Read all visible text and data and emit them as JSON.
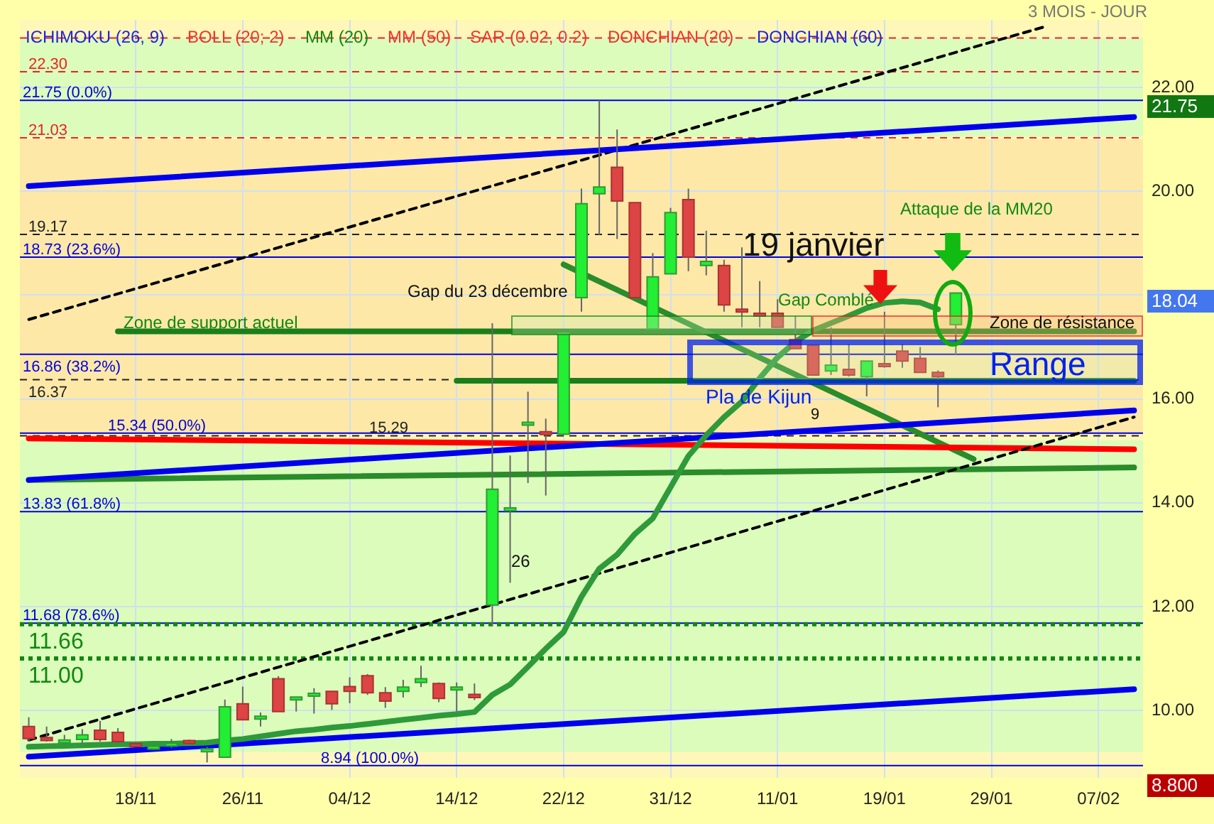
{
  "chart_data": {
    "type": "candlestick",
    "categories": [
      null,
      null,
      null,
      null,
      null,
      null,
      "18/11",
      null,
      null,
      null,
      null,
      null,
      "26/11",
      null,
      null,
      null,
      null,
      null,
      "04/12",
      null,
      null,
      null,
      null,
      null,
      "14/12",
      null,
      null,
      null,
      null,
      null,
      "22/12",
      null,
      null,
      null,
      null,
      null,
      "31/12",
      null,
      null,
      null,
      null,
      null,
      "11/01",
      null,
      null,
      null,
      null,
      null,
      "19/01",
      null,
      null,
      null,
      null,
      null,
      "29/01",
      null,
      null,
      null,
      null,
      null,
      "07/02",
      null,
      null
    ],
    "ohlc": [
      [
        9.69,
        9.87,
        9.4,
        9.46
      ],
      [
        9.48,
        9.69,
        9.4,
        9.42
      ],
      [
        9.42,
        9.53,
        9.35,
        9.43
      ],
      [
        9.44,
        9.64,
        9.37,
        9.53
      ],
      [
        9.62,
        9.8,
        9.4,
        9.44
      ],
      [
        9.58,
        9.66,
        9.37,
        9.4
      ],
      [
        9.36,
        9.4,
        9.33,
        9.35
      ],
      [
        9.26,
        9.33,
        9.24,
        9.31
      ],
      [
        9.36,
        9.45,
        9.28,
        9.37
      ],
      [
        9.42,
        9.44,
        9.37,
        9.37
      ],
      [
        9.25,
        9.3,
        9.0,
        9.26
      ],
      [
        9.1,
        10.21,
        9.1,
        10.07
      ],
      [
        10.13,
        10.46,
        9.82,
        9.82
      ],
      [
        9.87,
        9.96,
        9.69,
        9.89
      ],
      [
        10.61,
        10.66,
        9.98,
        9.98
      ],
      [
        10.24,
        10.26,
        9.98,
        10.26
      ],
      [
        10.32,
        10.43,
        9.94,
        10.33
      ],
      [
        10.37,
        10.37,
        10.01,
        10.13
      ],
      [
        10.46,
        10.64,
        10.14,
        10.37
      ],
      [
        10.67,
        10.7,
        10.3,
        10.34
      ],
      [
        10.34,
        10.45,
        10.05,
        10.18
      ],
      [
        10.37,
        10.59,
        10.25,
        10.45
      ],
      [
        10.54,
        10.86,
        10.45,
        10.61
      ],
      [
        10.52,
        10.54,
        10.16,
        10.23
      ],
      [
        10.43,
        10.54,
        9.98,
        10.45
      ],
      [
        10.31,
        10.52,
        10.2,
        10.25
      ],
      [
        12.03,
        17.46,
        11.62,
        14.26
      ],
      [
        13.88,
        14.91,
        12.46,
        13.9
      ],
      [
        15.5,
        16.14,
        14.38,
        15.55
      ],
      [
        15.37,
        15.62,
        14.14,
        15.33
      ],
      [
        15.32,
        17.3,
        15.3,
        17.27
      ],
      [
        17.95,
        20.05,
        17.68,
        19.76
      ],
      [
        19.95,
        21.75,
        19.16,
        20.08
      ],
      [
        20.46,
        21.19,
        19.08,
        19.81
      ],
      [
        19.78,
        19.78,
        17.95,
        17.95
      ],
      [
        17.35,
        18.81,
        17.35,
        18.35
      ],
      [
        18.41,
        19.68,
        18.41,
        19.59
      ],
      [
        19.84,
        20.05,
        18.46,
        18.73
      ],
      [
        18.57,
        19.24,
        18.38,
        18.65
      ],
      [
        18.57,
        18.68,
        17.68,
        17.81
      ],
      [
        17.73,
        18.92,
        17.38,
        17.68
      ],
      [
        17.65,
        18.27,
        17.38,
        17.6
      ],
      [
        17.65,
        17.92,
        17.38,
        17.38
      ],
      [
        17.14,
        17.59,
        16.97,
        16.97
      ],
      [
        17.03,
        17.03,
        16.46,
        16.46
      ],
      [
        16.54,
        17.38,
        16.46,
        16.65
      ],
      [
        16.57,
        17.05,
        16.43,
        16.46
      ],
      [
        16.43,
        16.73,
        16.05,
        16.73
      ],
      [
        16.68,
        17.68,
        16.6,
        16.65
      ],
      [
        16.92,
        17.05,
        16.6,
        16.73
      ],
      [
        16.78,
        17.0,
        16.51,
        16.51
      ],
      [
        16.51,
        16.55,
        15.84,
        16.43
      ],
      [
        17.43,
        18.04,
        16.84,
        18.04
      ],
      null,
      null,
      null,
      null,
      null,
      null,
      null,
      null,
      null,
      null
    ],
    "series": [
      {
        "type": "line",
        "color": "#2e9a3a",
        "values": [
          9.3,
          9.31,
          9.32,
          9.33,
          9.34,
          9.35,
          9.35,
          9.36,
          9.36,
          9.37,
          9.38,
          9.42,
          9.45,
          9.5,
          9.55,
          9.6,
          9.63,
          9.67,
          9.7,
          9.74,
          9.78,
          9.82,
          9.86,
          9.9,
          9.93,
          9.97,
          10.3,
          10.5,
          10.84,
          11.19,
          11.51,
          12.19,
          12.73,
          13.0,
          13.4,
          13.7,
          14.3,
          14.9,
          15.3,
          15.65,
          15.95,
          16.4,
          16.8,
          17.1,
          17.32,
          17.46,
          17.6,
          17.75,
          17.85,
          17.88,
          17.86,
          17.73,
          null,
          null,
          null,
          null,
          null,
          null,
          null,
          null,
          null,
          null,
          null
        ]
      },
      {
        "type": "line",
        "color": "#0000ee",
        "values": [
          20.1,
          null,
          null,
          null,
          null,
          null,
          null,
          null,
          null,
          null,
          null,
          null,
          null,
          null,
          null,
          null,
          null,
          null,
          null,
          null,
          null,
          null,
          null,
          null,
          null,
          null,
          null,
          null,
          null,
          null,
          null,
          null,
          null,
          null,
          null,
          null,
          null,
          null,
          null,
          null,
          null,
          null,
          null,
          null,
          null,
          null,
          null,
          null,
          null,
          null,
          null,
          null,
          null,
          null,
          null,
          null,
          null,
          null,
          null,
          null,
          null,
          null,
          21.43
        ]
      },
      {
        "type": "line",
        "color": "#0000ee",
        "values": [
          14.44,
          null,
          null,
          null,
          null,
          null,
          null,
          null,
          null,
          null,
          null,
          null,
          null,
          null,
          null,
          null,
          null,
          null,
          null,
          null,
          null,
          null,
          null,
          null,
          null,
          null,
          null,
          null,
          null,
          null,
          null,
          null,
          null,
          null,
          null,
          null,
          null,
          null,
          null,
          null,
          null,
          null,
          null,
          null,
          null,
          null,
          null,
          null,
          null,
          null,
          null,
          null,
          null,
          null,
          null,
          null,
          null,
          null,
          null,
          null,
          null,
          null,
          15.78
        ]
      },
      {
        "type": "line",
        "color": "#0000ee",
        "values": [
          9.11,
          null,
          null,
          null,
          null,
          null,
          null,
          null,
          null,
          null,
          null,
          null,
          null,
          null,
          null,
          null,
          null,
          null,
          null,
          null,
          null,
          null,
          null,
          null,
          null,
          null,
          null,
          null,
          null,
          null,
          null,
          null,
          null,
          null,
          null,
          null,
          null,
          null,
          null,
          null,
          null,
          null,
          null,
          null,
          null,
          null,
          null,
          null,
          null,
          null,
          null,
          null,
          null,
          null,
          null,
          null,
          null,
          null,
          null,
          null,
          null,
          null,
          10.41
        ]
      },
      {
        "type": "line",
        "color": "#000000",
        "line_style": "dashed",
        "values": [
          17.53,
          null,
          null,
          null,
          null,
          null,
          null,
          null,
          null,
          null,
          null,
          null,
          null,
          null,
          null,
          null,
          null,
          null,
          null,
          null,
          null,
          null,
          null,
          null,
          null,
          null,
          null,
          null,
          null,
          null,
          null,
          null,
          null,
          null,
          null,
          null,
          null,
          null,
          null,
          null,
          null,
          null,
          null,
          null,
          null,
          null,
          null,
          null,
          null,
          null,
          null,
          null,
          null,
          null,
          null,
          null,
          null,
          23.17,
          null,
          null,
          null,
          null,
          null
        ]
      },
      {
        "type": "line",
        "color": "#000000",
        "line_style": "dashed",
        "values": [
          9.43,
          null,
          null,
          null,
          null,
          null,
          null,
          null,
          null,
          null,
          null,
          null,
          null,
          null,
          null,
          null,
          null,
          null,
          null,
          null,
          null,
          null,
          null,
          null,
          null,
          null,
          null,
          null,
          null,
          null,
          null,
          null,
          null,
          null,
          null,
          null,
          null,
          null,
          null,
          null,
          null,
          null,
          null,
          null,
          null,
          null,
          null,
          null,
          null,
          null,
          null,
          null,
          null,
          null,
          null,
          null,
          null,
          null,
          null,
          null,
          null,
          null,
          15.65
        ]
      },
      {
        "type": "line",
        "color": "#2a8c2a",
        "values": [
          14.44,
          null,
          null,
          null,
          null,
          null,
          null,
          null,
          null,
          null,
          null,
          null,
          null,
          null,
          null,
          null,
          null,
          null,
          null,
          null,
          null,
          null,
          null,
          null,
          null,
          null,
          null,
          null,
          null,
          null,
          null,
          null,
          null,
          null,
          null,
          null,
          null,
          null,
          null,
          null,
          null,
          null,
          null,
          null,
          null,
          null,
          null,
          null,
          null,
          null,
          null,
          null,
          null,
          null,
          null,
          null,
          null,
          null,
          null,
          null,
          null,
          null,
          14.68
        ]
      },
      {
        "type": "line",
        "color": "#ff0000",
        "values": [
          15.24,
          null,
          null,
          null,
          null,
          null,
          null,
          null,
          null,
          null,
          null,
          null,
          null,
          null,
          null,
          null,
          null,
          null,
          null,
          null,
          null,
          null,
          null,
          null,
          null,
          null,
          null,
          null,
          null,
          null,
          null,
          null,
          null,
          null,
          null,
          null,
          null,
          null,
          null,
          null,
          null,
          null,
          null,
          null,
          null,
          null,
          null,
          null,
          null,
          null,
          null,
          null,
          null,
          null,
          null,
          null,
          null,
          null,
          null,
          null,
          null,
          null,
          15.03
        ]
      },
      {
        "type": "line",
        "color": "#2a8c2a",
        "values": [
          null,
          null,
          null,
          null,
          null,
          null,
          null,
          null,
          null,
          null,
          null,
          null,
          null,
          null,
          null,
          null,
          null,
          null,
          null,
          null,
          null,
          null,
          null,
          null,
          null,
          null,
          null,
          null,
          null,
          null,
          18.59,
          null,
          null,
          null,
          null,
          null,
          null,
          null,
          null,
          null,
          null,
          null,
          null,
          null,
          null,
          null,
          null,
          null,
          null,
          null,
          null,
          null,
          null,
          14.84,
          null,
          null,
          null,
          null,
          null,
          null,
          null,
          null,
          null
        ]
      },
      {
        "type": "line",
        "color": "#1a7f1a",
        "values": [
          null,
          null,
          null,
          null,
          null,
          17.3,
          null,
          null,
          null,
          null,
          null,
          null,
          null,
          null,
          null,
          null,
          null,
          null,
          null,
          null,
          null,
          null,
          null,
          null,
          null,
          null,
          null,
          null,
          null,
          null,
          null,
          null,
          null,
          null,
          null,
          null,
          null,
          null,
          null,
          null,
          null,
          null,
          null,
          null,
          null,
          null,
          null,
          null,
          null,
          null,
          null,
          null,
          null,
          null,
          null,
          null,
          null,
          null,
          null,
          null,
          null,
          null,
          17.3
        ]
      },
      {
        "type": "line",
        "color": "#1a7f1a",
        "values": [
          null,
          null,
          null,
          null,
          null,
          null,
          null,
          null,
          null,
          null,
          null,
          null,
          null,
          null,
          null,
          null,
          null,
          null,
          null,
          null,
          null,
          null,
          null,
          null,
          16.35,
          null,
          null,
          null,
          null,
          null,
          null,
          null,
          null,
          null,
          null,
          null,
          null,
          null,
          null,
          null,
          null,
          null,
          null,
          null,
          null,
          null,
          null,
          null,
          null,
          null,
          null,
          null,
          null,
          null,
          null,
          null,
          null,
          null,
          null,
          null,
          null,
          null,
          16.35
        ]
      }
    ],
    "ylim": [
      8.7,
      23.3
    ],
    "yticks": [
      {
        "value": 10,
        "label": "10.00"
      },
      {
        "value": 12,
        "label": "12.00"
      },
      {
        "value": 14,
        "label": "14.00"
      },
      {
        "value": 16,
        "label": "16.00"
      },
      {
        "value": 18,
        "label": null
      },
      {
        "value": 20,
        "label": "20.00"
      },
      {
        "value": 22,
        "label": "22.00"
      }
    ],
    "grid": true,
    "legend": false,
    "bands": [
      {
        "axis": "y",
        "from": 21.05,
        "to": 22.95,
        "color": "#dcfcbc"
      },
      {
        "axis": "y",
        "from": 15.35,
        "to": 21.0,
        "color": "#fde8a8"
      },
      {
        "axis": "y",
        "from": 9.2,
        "to": 15.2,
        "color": "#dcfcbc"
      }
    ],
    "ref_lines": [
      {
        "axis": "y",
        "value": 22.95,
        "color": "#ee2222",
        "line_style": "dashed"
      },
      {
        "axis": "y",
        "value": 22.3,
        "label": "22.30",
        "color": "#ee2222",
        "line_style": "dashed"
      },
      {
        "axis": "y",
        "value": 21.75,
        "label": "21.75 (0.0%)",
        "color": "#0000dd",
        "line_style": "solid"
      },
      {
        "axis": "y",
        "value": 21.03,
        "label": "21.03",
        "color": "#ee2222",
        "line_style": "dashed"
      },
      {
        "axis": "y",
        "value": 19.17,
        "label": "19.17",
        "color": "#222222",
        "line_style": "dashed"
      },
      {
        "axis": "y",
        "value": 18.73,
        "label": "18.73 (23.6%)",
        "color": "#0000dd",
        "line_style": "solid"
      },
      {
        "axis": "y",
        "value": 16.86,
        "label": "16.86 (38.2%)",
        "color": "#0000dd",
        "line_style": "solid"
      },
      {
        "axis": "y",
        "value": 16.37,
        "label": "16.37",
        "color": "#222222",
        "line_style": "dashed"
      },
      {
        "axis": "y",
        "value": 15.34,
        "label": "15.34 (50.0%)",
        "color": "#0000dd",
        "line_style": "solid"
      },
      {
        "axis": "y",
        "value": 15.29,
        "label": "15.29",
        "color": "#222222",
        "line_style": "dashed"
      },
      {
        "axis": "y",
        "value": 13.83,
        "label": "13.83 (61.8%)",
        "color": "#0000dd",
        "line_style": "solid"
      },
      {
        "axis": "y",
        "value": 11.68,
        "label": "11.68 (78.6%)",
        "color": "#0000dd",
        "line_style": "solid"
      },
      {
        "axis": "y",
        "value": 11.66,
        "label": "11.66",
        "color": "#118811",
        "line_style": "dotted"
      },
      {
        "axis": "y",
        "value": 11.0,
        "label": "11.00",
        "color": "#118811",
        "line_style": "dotted"
      },
      {
        "axis": "y",
        "value": 8.94,
        "label": "8.94 (100.0%)",
        "color": "#0000dd",
        "line_style": "solid"
      }
    ],
    "annotations": [
      "ICHIMOKU (26, 9)",
      "BOLL (20; 2)",
      "MM (20)",
      "MM (50)",
      "SAR (0.02, 0.2)",
      "DONCHIAN (20)",
      "DONCHIAN (60)",
      "3 MOIS - JOUR",
      "Gap du 23 décembre",
      "Zone de support actuel",
      "Gap Comblé",
      "19 janvier",
      "Attaque de la MM20",
      "Zone de résistance",
      "Range",
      "Pla de Kijun",
      "9",
      "26",
      "21.75",
      "18.04",
      "8.800"
    ]
  }
}
